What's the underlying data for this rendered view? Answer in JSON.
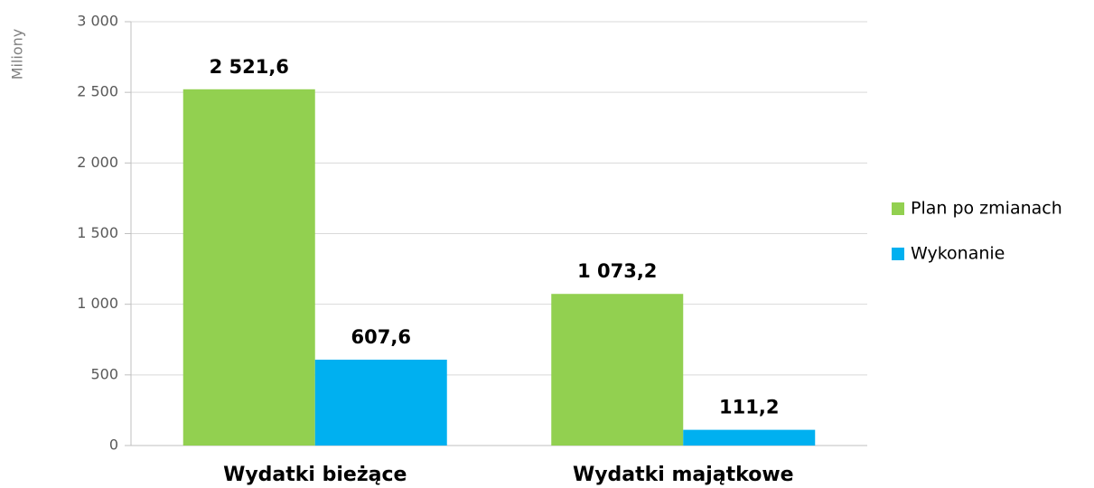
{
  "chart_data": {
    "type": "bar",
    "y_label": "Miliony",
    "categories": [
      "Wydatki bieżące",
      "Wydatki majątkowe"
    ],
    "series": [
      {
        "name": "Plan po zmianach",
        "color": "#92d050",
        "values": [
          2521.6,
          1073.2
        ],
        "value_labels": [
          "2 521,6",
          "1 073,2"
        ]
      },
      {
        "name": "Wykonanie",
        "color": "#00b0f0",
        "values": [
          607.6,
          111.2
        ],
        "value_labels": [
          "607,6",
          "111,2"
        ]
      }
    ],
    "ylim": [
      0,
      3000
    ],
    "yticks": [
      0,
      500,
      {
        "value": 1000,
        "label": "1 000"
      },
      {
        "value": 1500,
        "label": "1 500"
      },
      {
        "value": 2000,
        "label": "2 000"
      },
      {
        "value": 2500,
        "label": "2 500"
      },
      {
        "value": 3000,
        "label": "3 000"
      }
    ],
    "grid": true,
    "legend": "right"
  }
}
